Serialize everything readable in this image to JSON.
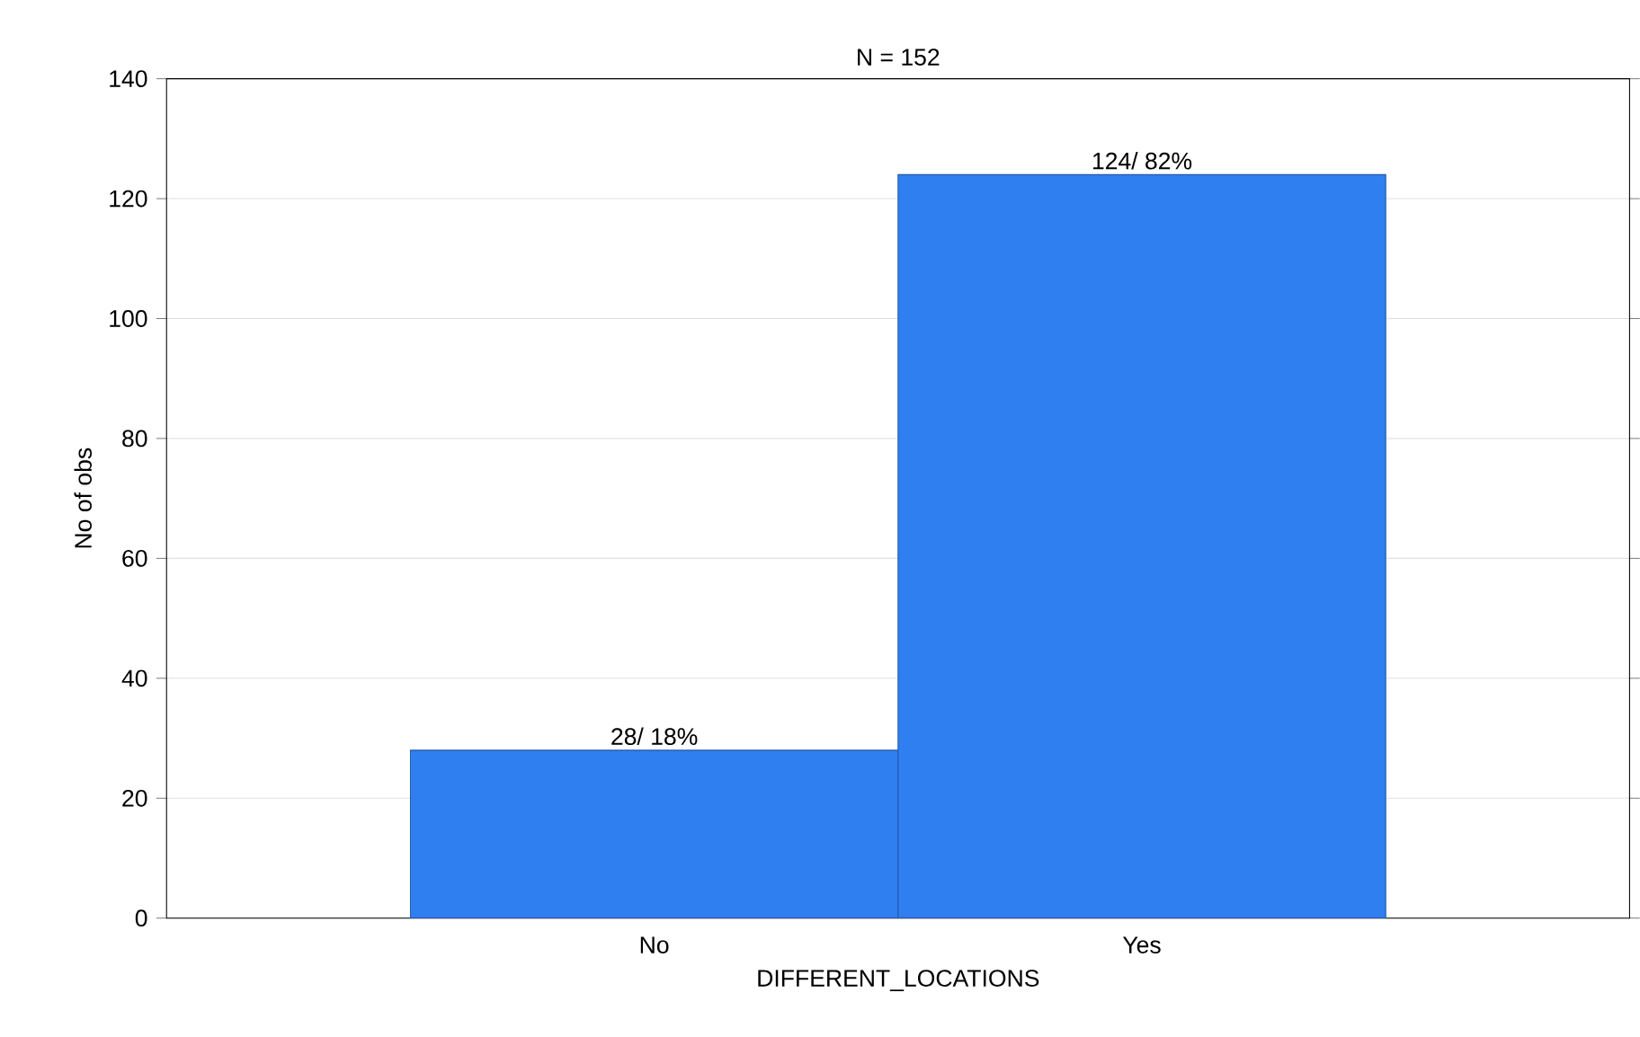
{
  "chart_data": {
    "type": "bar",
    "title": "N = 152",
    "xlabel": "DIFFERENT_LOCATIONS",
    "ylabel": "No of obs",
    "categories": [
      "No",
      "Yes"
    ],
    "values": [
      28,
      124
    ],
    "color": "#2f7ff0",
    "value_labels": [
      "28/ 18%",
      "124/ 82%"
    ],
    "ylim": [
      0,
      140
    ],
    "yticks": [
      0,
      20,
      40,
      60,
      80,
      100,
      120,
      140
    ],
    "grid": "y"
  }
}
